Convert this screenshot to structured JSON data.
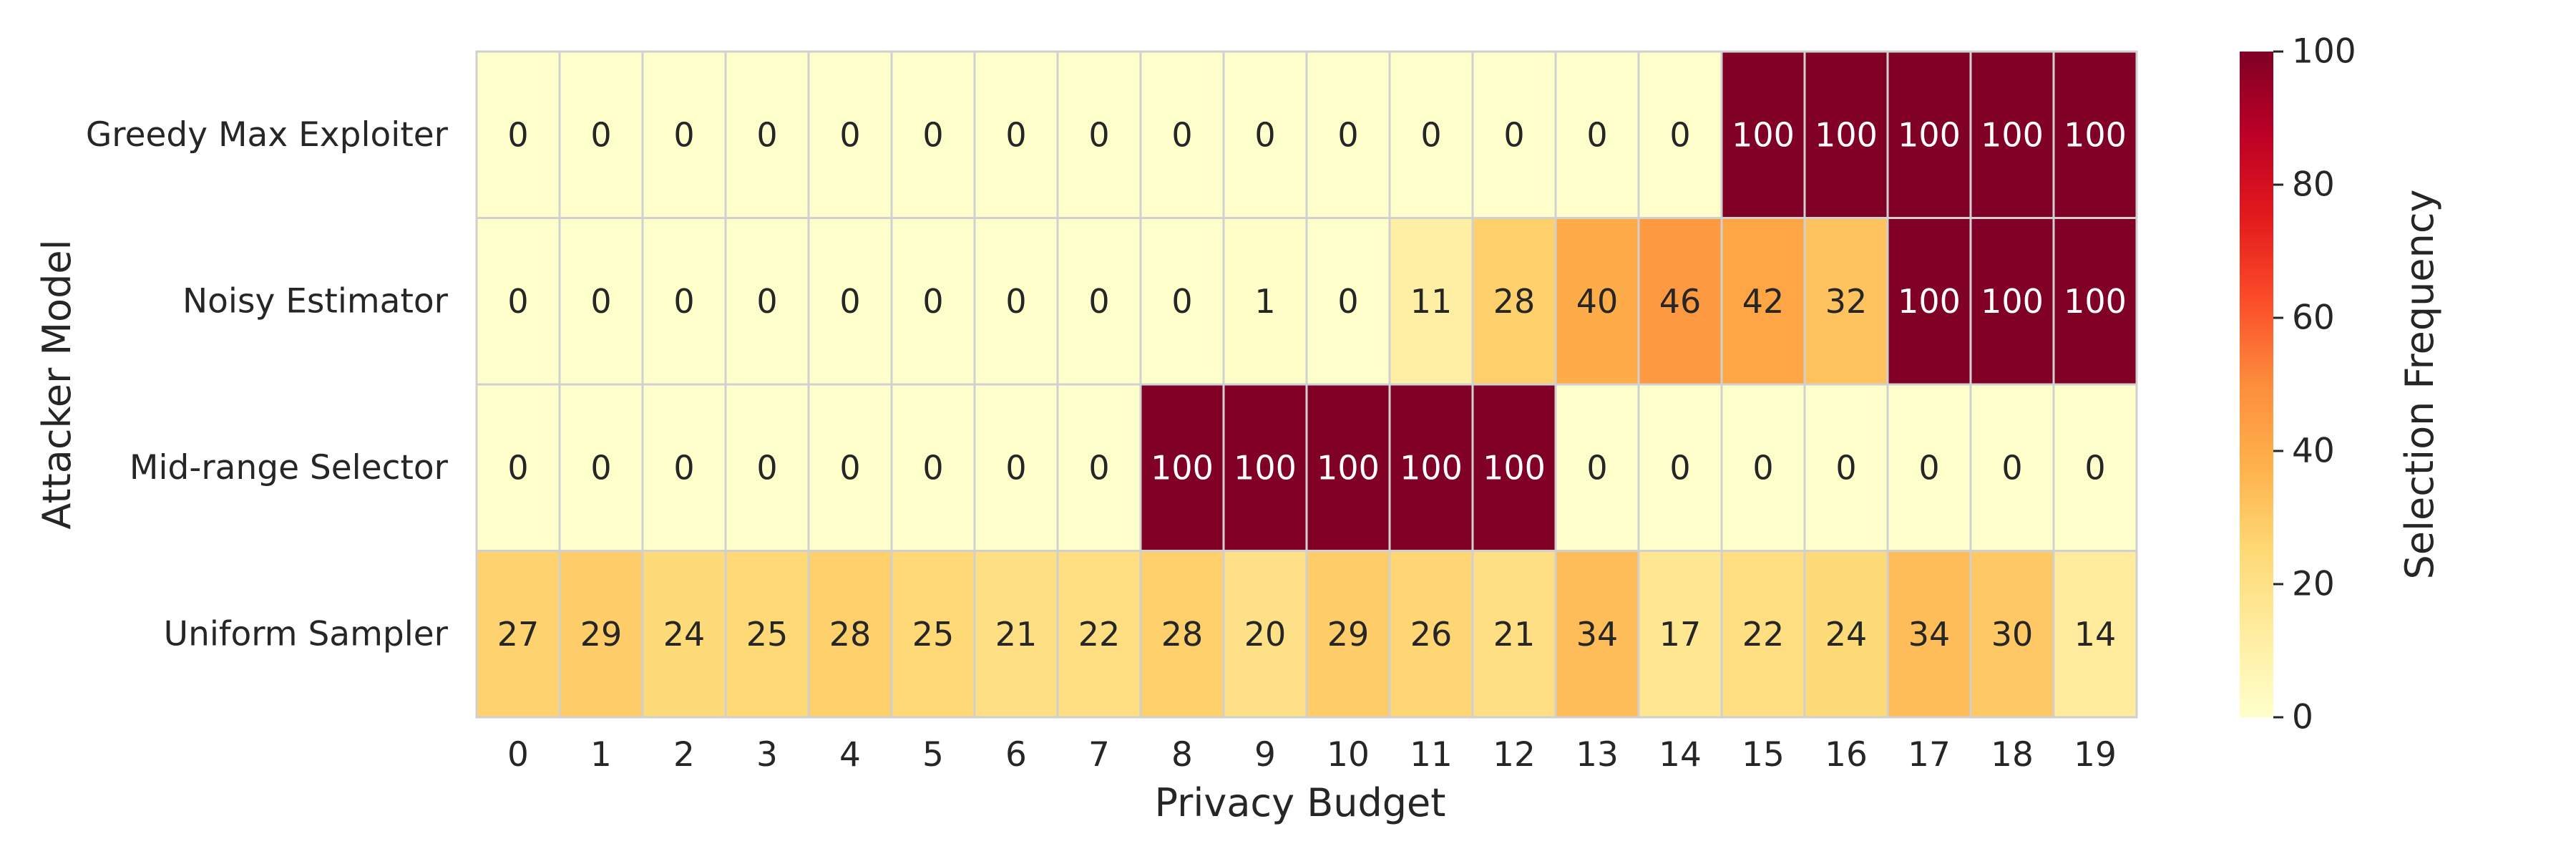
{
  "chart_data": {
    "type": "heatmap",
    "title": "",
    "xlabel": "Privacy Budget",
    "ylabel": "Attacker Model",
    "x_categories": [
      "0",
      "1",
      "2",
      "3",
      "4",
      "5",
      "6",
      "7",
      "8",
      "9",
      "10",
      "11",
      "12",
      "13",
      "14",
      "15",
      "16",
      "17",
      "18",
      "19"
    ],
    "y_categories": [
      "Greedy Max Exploiter",
      "Noisy Estimator",
      "Mid-range Selector",
      "Uniform Sampler"
    ],
    "values": [
      [
        0,
        0,
        0,
        0,
        0,
        0,
        0,
        0,
        0,
        0,
        0,
        0,
        0,
        0,
        0,
        100,
        100,
        100,
        100,
        100
      ],
      [
        0,
        0,
        0,
        0,
        0,
        0,
        0,
        0,
        0,
        1,
        0,
        11,
        28,
        40,
        46,
        42,
        32,
        100,
        100,
        100
      ],
      [
        0,
        0,
        0,
        0,
        0,
        0,
        0,
        0,
        100,
        100,
        100,
        100,
        100,
        0,
        0,
        0,
        0,
        0,
        0,
        0
      ],
      [
        27,
        29,
        24,
        25,
        28,
        25,
        21,
        22,
        28,
        20,
        29,
        26,
        21,
        34,
        17,
        22,
        24,
        34,
        30,
        14
      ]
    ],
    "colorbar": {
      "label": "Selection Frequency",
      "range": [
        0,
        100
      ],
      "ticks": [
        0,
        20,
        40,
        60,
        80,
        100
      ],
      "colormap": "YlOrRd"
    },
    "cell_annotations": true,
    "grid_line_color": "#d0d0d0"
  }
}
